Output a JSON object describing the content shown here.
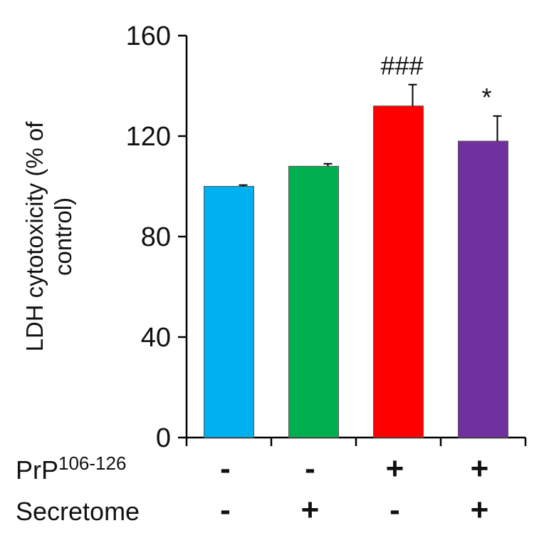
{
  "chart_data": {
    "type": "bar",
    "ylabel_lines": [
      "LDH cytotoxicity (% of",
      "control)"
    ],
    "ylim": [
      0,
      160
    ],
    "yticks": [
      0,
      40,
      80,
      120,
      160
    ],
    "ytick_labels": [
      "0",
      "40",
      "80",
      "120",
      "160"
    ],
    "bars": [
      {
        "value": 100,
        "error": 0.5,
        "color": "#00b0f0",
        "annotation": ""
      },
      {
        "value": 108,
        "error": 1,
        "color": "#00b050",
        "annotation": ""
      },
      {
        "value": 132,
        "error": 8.5,
        "color": "#ff0000",
        "annotation": "###"
      },
      {
        "value": 118,
        "error": 10,
        "color": "#7030a0",
        "annotation": "*"
      }
    ],
    "conditions": [
      {
        "label": "PrP",
        "superscript": "106-126",
        "values": [
          "-",
          "-",
          "+",
          "+"
        ]
      },
      {
        "label": "Secretome",
        "superscript": "",
        "values": [
          "-",
          "+",
          "-",
          "+"
        ]
      }
    ]
  }
}
